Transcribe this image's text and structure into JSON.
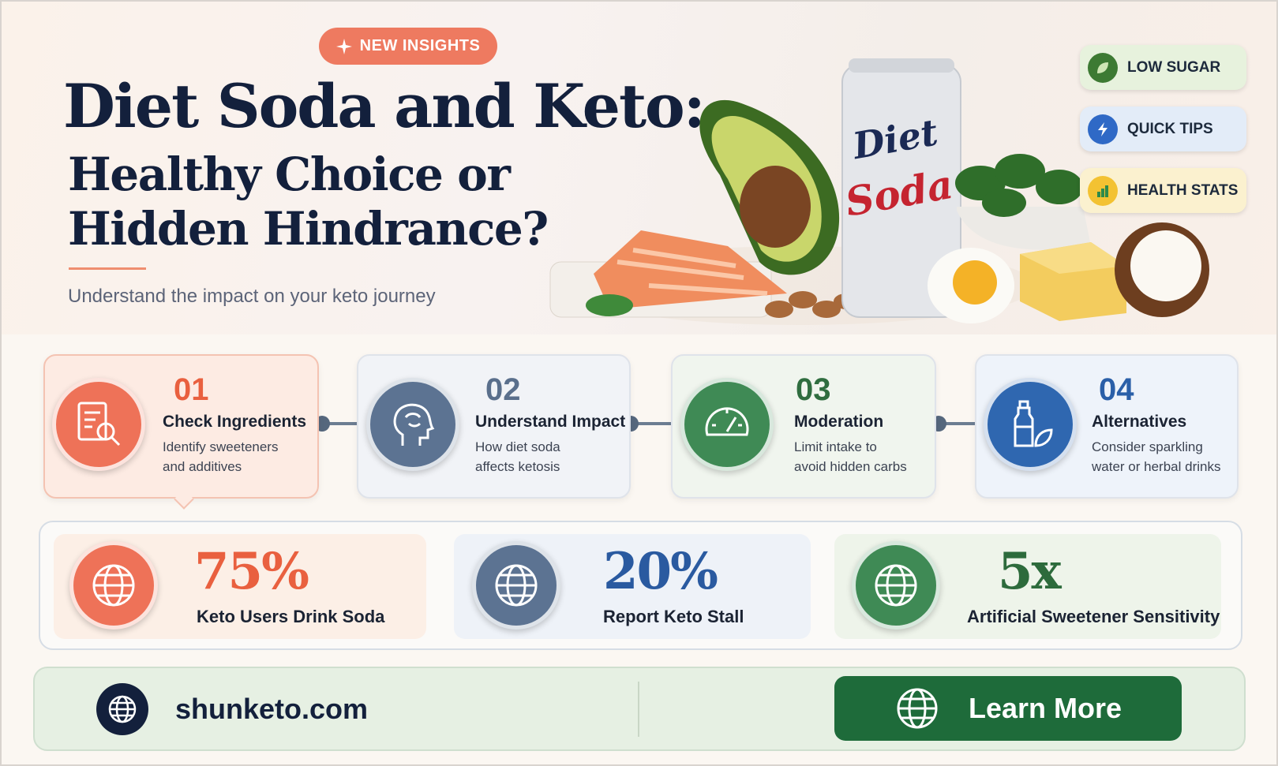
{
  "header": {
    "badge": "NEW INSIGHTS",
    "title_lines": [
      "Diet Soda and Keto:",
      "Healthy Choice or",
      "Hidden Hindrance?"
    ],
    "subtitle": "Understand the impact on your keto journey"
  },
  "can_label": [
    "Diet",
    "Soda"
  ],
  "tags": [
    "LOW SUGAR",
    "QUICK TIPS",
    "HEALTH STATS"
  ],
  "steps": [
    {
      "number": "01",
      "title": "Check Ingredients",
      "description": [
        "Identify sweeteners",
        "and additives"
      ]
    },
    {
      "number": "02",
      "title": "Understand Impact",
      "description": [
        "How diet soda",
        "affects ketosis"
      ]
    },
    {
      "number": "03",
      "title": "Moderation",
      "description": [
        "Limit intake to",
        "avoid hidden carbs"
      ]
    },
    {
      "number": "04",
      "title": "Alternatives",
      "description": [
        "Consider sparkling",
        "water or herbal drinks"
      ]
    }
  ],
  "stats": [
    {
      "value": "75%",
      "label": "Keto Users Drink Soda"
    },
    {
      "value": "20%",
      "label": "Report Keto Stall"
    },
    {
      "value": "5x",
      "label": "Artificial Sweetener Sensitivity"
    }
  ],
  "footer": {
    "website": "shunketo.com",
    "button": "Learn More"
  }
}
